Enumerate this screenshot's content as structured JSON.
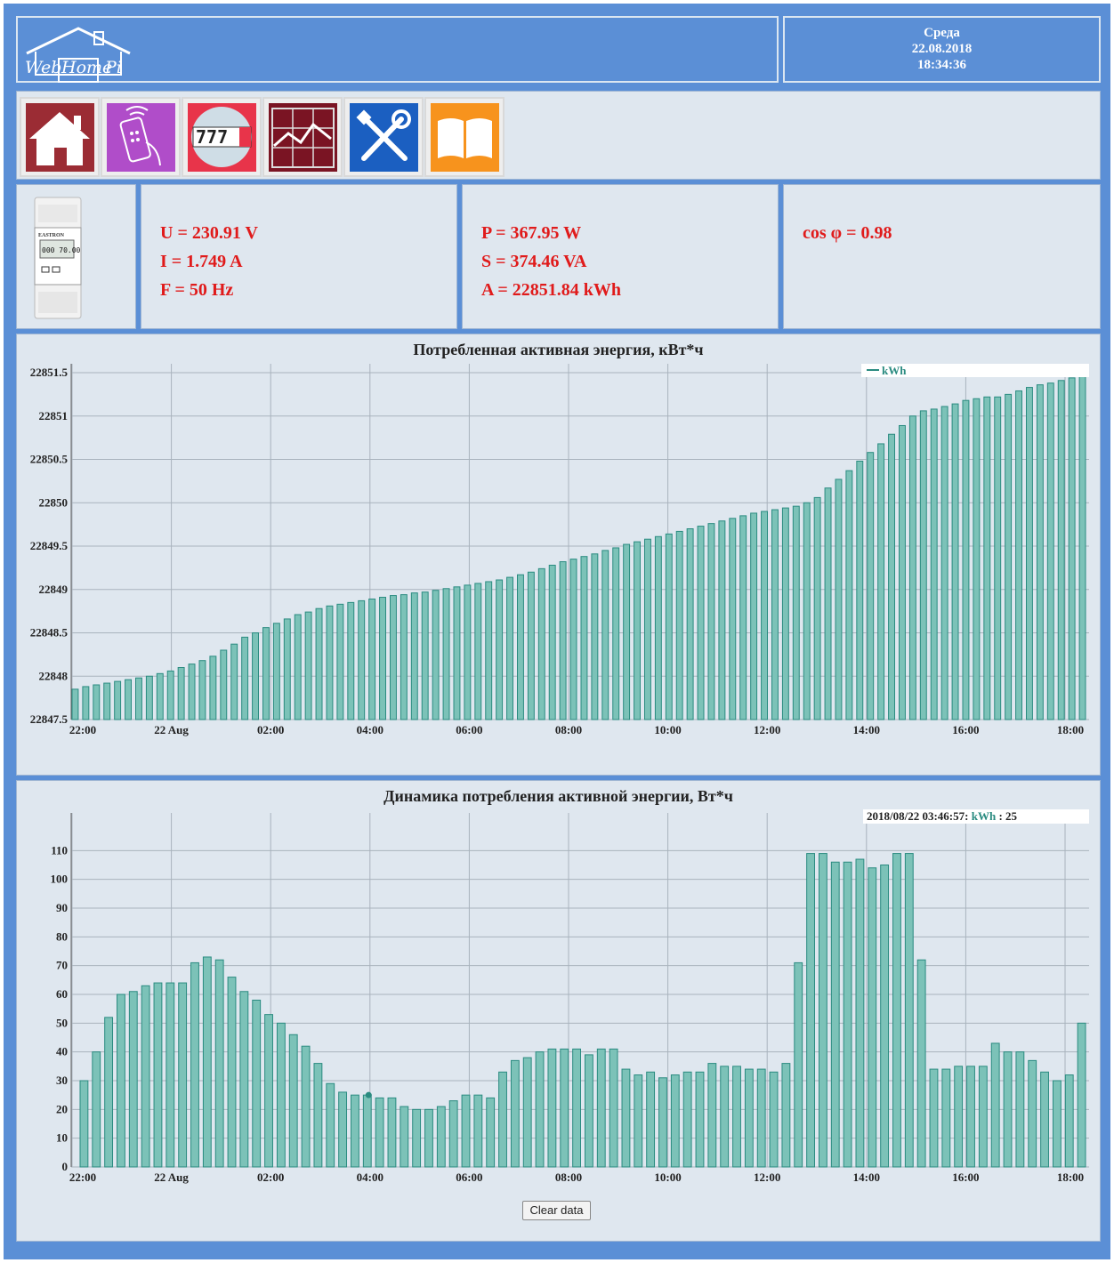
{
  "header": {
    "logo_words": [
      "Web",
      "Home",
      "Pi"
    ],
    "day": "Среда",
    "date": "22.08.2018",
    "time": "18:34:36"
  },
  "nav_icons": [
    {
      "name": "home-icon",
      "bg": "#9b2c34"
    },
    {
      "name": "remote-control-icon",
      "bg": "#b04dc9"
    },
    {
      "name": "meter-counter-icon",
      "bg": "#e8344a",
      "counter_text": "777"
    },
    {
      "name": "chart-icon",
      "bg": "#7a1423"
    },
    {
      "name": "tools-icon",
      "bg": "#1b5fc1"
    },
    {
      "name": "book-icon",
      "bg": "#f7931d"
    }
  ],
  "meter": {
    "brand": "EASTRON",
    "display": "000 70.00"
  },
  "readings": {
    "u": "U = 230.91 V",
    "i": "I = 1.749 A",
    "f": "F = 50 Hz",
    "p": "P = 367.95 W",
    "s": "S = 374.46 VA",
    "a": "A = 22851.84 kWh",
    "cos": "cos φ = 0.98"
  },
  "colors": {
    "frame": "#5b8fd6",
    "panel": "#dfe7ef",
    "reading": "#e01b1b",
    "bar_fill": "#7cc2b8",
    "bar_stroke": "#2a8b80",
    "legend": "#2a8b80"
  },
  "x_ticks": [
    "22:00",
    "22 Aug",
    "02:00",
    "04:00",
    "06:00",
    "08:00",
    "10:00",
    "12:00",
    "14:00",
    "16:00",
    "18:00"
  ],
  "chart_data": [
    {
      "type": "bar",
      "title": "Потребленная активная энергия, кВт*ч",
      "legend": "kWh",
      "ylim": [
        22847.5,
        22851.5
      ],
      "yticks": [
        "22847.5",
        "22848",
        "22848.5",
        "22849",
        "22849.5",
        "22850",
        "22850.5",
        "22851",
        "22851.5"
      ],
      "grid": true,
      "values": [
        22847.85,
        22847.88,
        22847.9,
        22847.92,
        22847.94,
        22847.96,
        22847.98,
        22848.0,
        22848.03,
        22848.06,
        22848.1,
        22848.14,
        22848.18,
        22848.23,
        22848.3,
        22848.37,
        22848.45,
        22848.5,
        22848.56,
        22848.61,
        22848.66,
        22848.71,
        22848.74,
        22848.78,
        22848.81,
        22848.83,
        22848.85,
        22848.87,
        22848.89,
        22848.91,
        22848.93,
        22848.94,
        22848.96,
        22848.97,
        22848.99,
        22849.01,
        22849.03,
        22849.05,
        22849.07,
        22849.09,
        22849.11,
        22849.14,
        22849.17,
        22849.2,
        22849.24,
        22849.28,
        22849.32,
        22849.35,
        22849.38,
        22849.41,
        22849.45,
        22849.48,
        22849.52,
        22849.55,
        22849.58,
        22849.61,
        22849.64,
        22849.67,
        22849.7,
        22849.73,
        22849.76,
        22849.79,
        22849.82,
        22849.85,
        22849.88,
        22849.9,
        22849.92,
        22849.94,
        22849.96,
        22850.0,
        22850.06,
        22850.17,
        22850.27,
        22850.37,
        22850.48,
        22850.58,
        22850.68,
        22850.79,
        22850.89,
        22851.0,
        22851.06,
        22851.08,
        22851.11,
        22851.14,
        22851.18,
        22851.2,
        22851.22,
        22851.22,
        22851.25,
        22851.29,
        22851.33,
        22851.36,
        22851.38,
        22851.41,
        22851.44,
        22851.5
      ]
    },
    {
      "type": "bar",
      "title": "Динамика потребления активной энергии, Вт*ч",
      "tooltip_date": "2018/08/22 03:46:57: ",
      "tooltip_series": "kWh",
      "tooltip_value": " : 25",
      "ylim": [
        0,
        120
      ],
      "yticks": [
        "0",
        "10",
        "20",
        "30",
        "40",
        "50",
        "60",
        "70",
        "80",
        "90",
        "100",
        "110"
      ],
      "grid": true,
      "values": [
        30,
        40,
        52,
        60,
        61,
        63,
        64,
        64,
        64,
        71,
        73,
        72,
        66,
        61,
        58,
        53,
        50,
        46,
        42,
        36,
        29,
        26,
        25,
        25,
        24,
        24,
        21,
        20,
        20,
        21,
        23,
        25,
        25,
        24,
        33,
        37,
        38,
        40,
        41,
        41,
        41,
        39,
        41,
        41,
        34,
        32,
        33,
        31,
        32,
        33,
        33,
        36,
        35,
        35,
        34,
        34,
        33,
        36,
        71,
        109,
        109,
        106,
        106,
        107,
        104,
        105,
        109,
        109,
        72,
        34,
        34,
        35,
        35,
        35,
        43,
        40,
        40,
        37,
        33,
        30,
        32,
        50
      ]
    }
  ],
  "clear_button": "Clear data"
}
